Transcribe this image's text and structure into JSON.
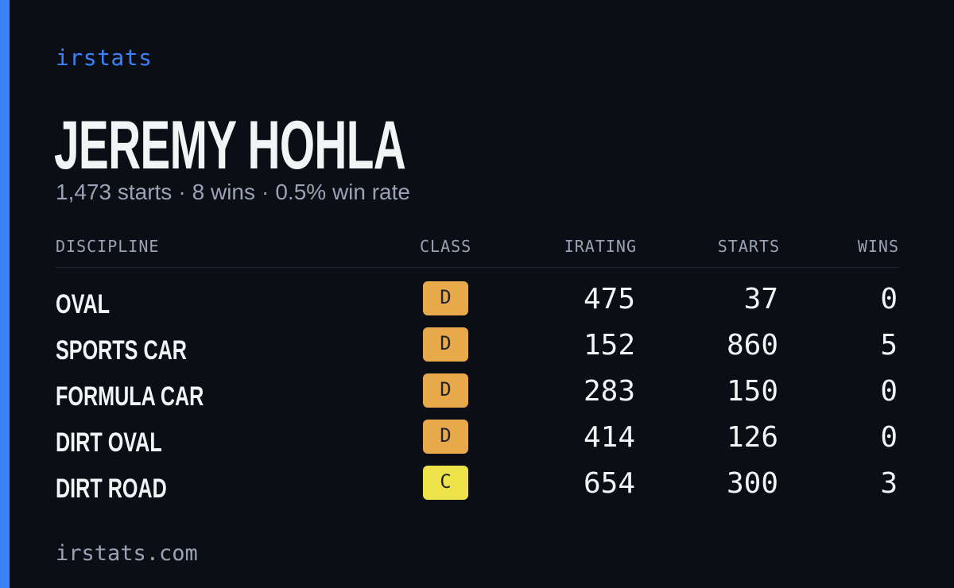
{
  "brand": "irstats",
  "driver_name": "JEREMY HOHLA",
  "summary": {
    "starts": "1,473 starts",
    "wins": "8 wins",
    "win_rate": "0.5% win rate",
    "separator": "·"
  },
  "table": {
    "headers": {
      "discipline": "DISCIPLINE",
      "class": "CLASS",
      "irating": "IRATING",
      "starts": "STARTS",
      "wins": "WINS"
    },
    "rows": [
      {
        "discipline": "OVAL",
        "class": "D",
        "irating": "475",
        "starts": "37",
        "wins": "0"
      },
      {
        "discipline": "SPORTS CAR",
        "class": "D",
        "irating": "152",
        "starts": "860",
        "wins": "5"
      },
      {
        "discipline": "FORMULA CAR",
        "class": "D",
        "irating": "283",
        "starts": "150",
        "wins": "0"
      },
      {
        "discipline": "DIRT OVAL",
        "class": "D",
        "irating": "414",
        "starts": "126",
        "wins": "0"
      },
      {
        "discipline": "DIRT ROAD",
        "class": "C",
        "irating": "654",
        "starts": "300",
        "wins": "3"
      }
    ]
  },
  "class_colors": {
    "D": "#e8a94a",
    "C": "#ede24a"
  },
  "accent_color": "#3b82f6",
  "footer": "irstats.com"
}
